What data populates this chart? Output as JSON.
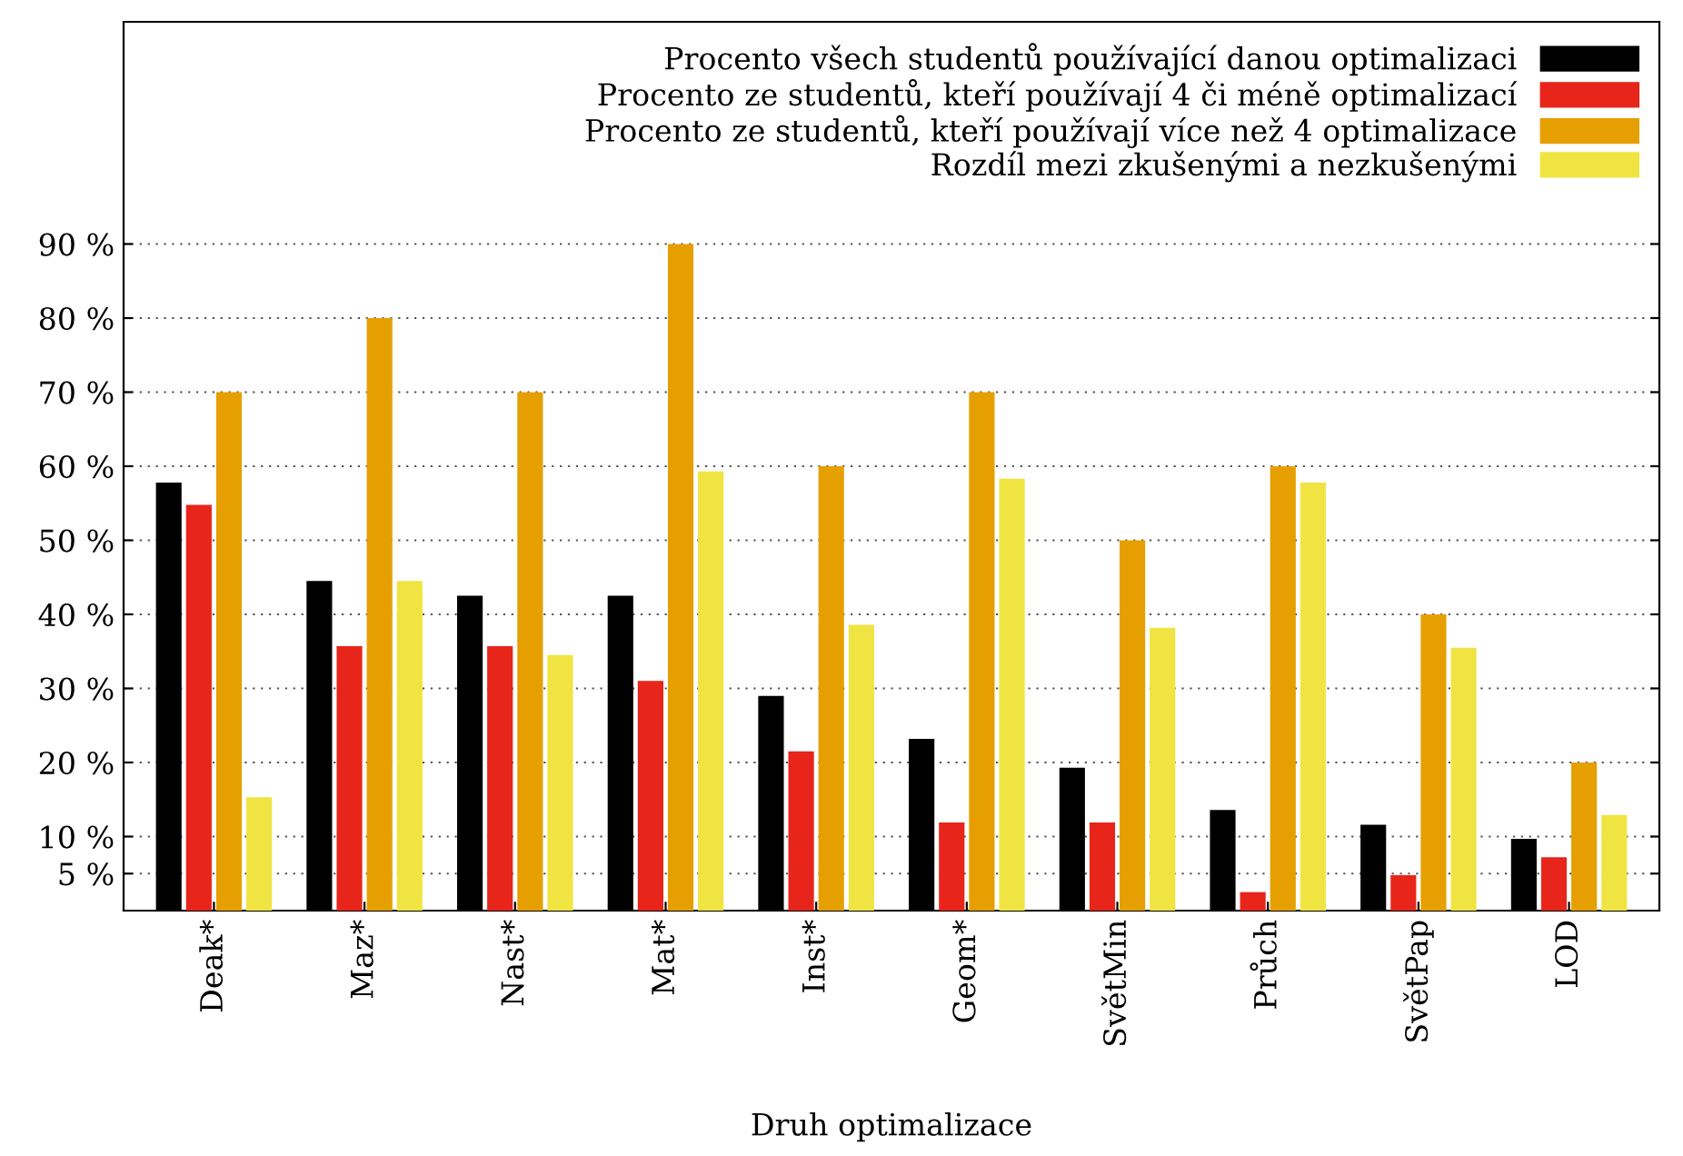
{
  "chart_data": {
    "type": "bar",
    "xlabel": "Druh optimalizace",
    "categories": [
      "Deak*",
      "Maz*",
      "Nast*",
      "Mat*",
      "Inst*",
      "Geom*",
      "SvětMin",
      "Průch",
      "SvětPap",
      "LOD"
    ],
    "series": [
      {
        "name": "Procento všech studentů používající danou optimalizaci",
        "color": "#000000",
        "values": [
          57.8,
          44.5,
          42.5,
          42.5,
          29,
          23.2,
          19.3,
          13.6,
          11.6,
          9.7
        ]
      },
      {
        "name": "Procento ze studentů, kteří používají 4 či méně optimalizací",
        "color": "#e8251a",
        "values": [
          54.8,
          35.7,
          35.7,
          31,
          21.5,
          11.9,
          11.9,
          2.5,
          4.8,
          7.2
        ]
      },
      {
        "name": "Procento ze studentů, kteří používají více než 4 optimalizace",
        "color": "#e69f00",
        "values": [
          70,
          80,
          70,
          90,
          60,
          70,
          50,
          60,
          40,
          20
        ]
      },
      {
        "name": "Rozdíl mezi zkušenými a nezkušenými",
        "color": "#f0e442",
        "values": [
          15.3,
          44.5,
          34.5,
          59.3,
          38.6,
          58.3,
          38.2,
          57.8,
          35.5,
          12.9
        ]
      }
    ],
    "ylim": [
      0,
      120
    ],
    "yticks": [
      {
        "value": 5,
        "label": "5 %"
      },
      {
        "value": 10,
        "label": "10 %"
      },
      {
        "value": 20,
        "label": "20 %"
      },
      {
        "value": 30,
        "label": "30 %"
      },
      {
        "value": 40,
        "label": "40 %"
      },
      {
        "value": 50,
        "label": "50 %"
      },
      {
        "value": 60,
        "label": "60 %"
      },
      {
        "value": 70,
        "label": "70 %"
      },
      {
        "value": 80,
        "label": "80 %"
      },
      {
        "value": 90,
        "label": "90 %"
      }
    ],
    "grid": "y",
    "legend": "top right"
  }
}
